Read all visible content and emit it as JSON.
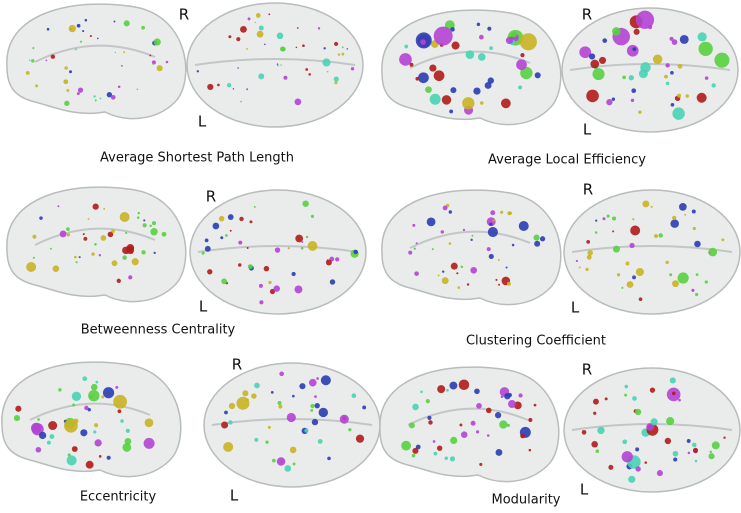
{
  "panels": [
    {
      "caption": "Average Shortest Path Length",
      "top_label": "R",
      "bottom_label": "L"
    },
    {
      "caption": "Average Local Efficiency",
      "top_label": "R",
      "bottom_label": "L"
    },
    {
      "caption": "Betweenness Centrality",
      "top_label": "R",
      "bottom_label": "L"
    },
    {
      "caption": "Clustering Coefficient",
      "top_label": "R",
      "bottom_label": "L"
    },
    {
      "caption": "Eccentricity",
      "top_label": "R",
      "bottom_label": "L"
    },
    {
      "caption": "Modularity",
      "top_label": "R",
      "bottom_label": "L"
    }
  ]
}
